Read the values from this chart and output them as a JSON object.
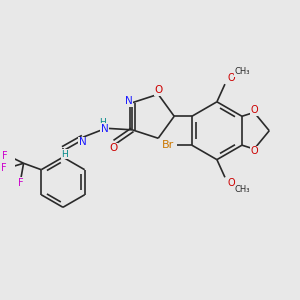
{
  "bg_color": "#e8e8e8",
  "bond_color": "#2a2a2a",
  "bond_width": 1.2,
  "atom_colors": {
    "O": "#cc0000",
    "N": "#1a1aff",
    "Br": "#cc7700",
    "F": "#cc00cc",
    "H": "#008888",
    "C": "#2a2a2a"
  },
  "font_size": 6.5
}
